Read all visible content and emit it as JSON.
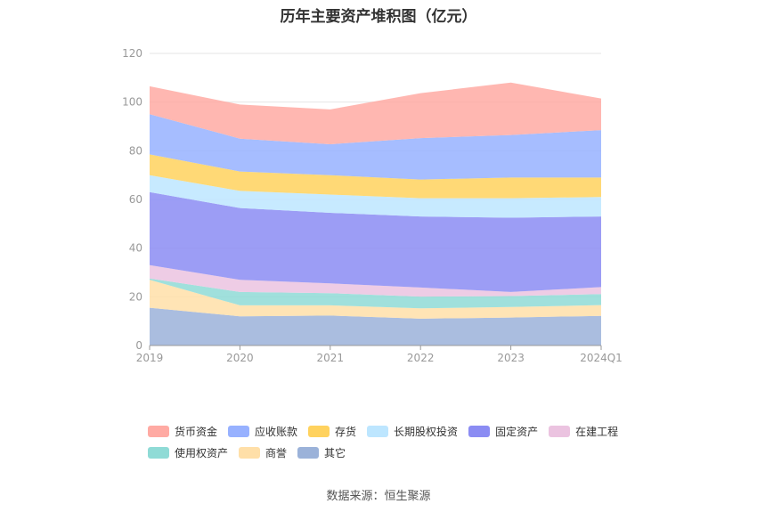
{
  "chart_data": {
    "type": "area",
    "title": "历年主要资产堆积图（亿元）",
    "source": "数据来源：恒生聚源",
    "categories": [
      "2019",
      "2020",
      "2021",
      "2022",
      "2023",
      "2024Q1"
    ],
    "ylim": [
      0,
      120
    ],
    "yticks": [
      "0",
      "20",
      "40",
      "60",
      "80",
      "100",
      "120"
    ],
    "stacked": true,
    "grid": true,
    "legend_position": "bottom",
    "series": [
      {
        "name": "其它",
        "color": "#9bb2d9",
        "values": [
          15.5,
          12.0,
          12.3,
          11.0,
          11.5,
          12.2
        ]
      },
      {
        "name": "商誉",
        "color": "#ffdfa8",
        "values": [
          11.5,
          4.5,
          4.2,
          4.3,
          4.3,
          4.4
        ]
      },
      {
        "name": "使用权资产",
        "color": "#8fdbd6",
        "values": [
          0.5,
          5.5,
          5.0,
          4.8,
          4.5,
          4.5
        ]
      },
      {
        "name": "在建工程",
        "color": "#ebc3e0",
        "values": [
          5.5,
          5.0,
          4.0,
          3.7,
          1.7,
          2.9
        ]
      },
      {
        "name": "固定资产",
        "color": "#8b8cf3",
        "values": [
          30.0,
          29.5,
          29.0,
          29.2,
          30.5,
          29.0
        ]
      },
      {
        "name": "长期股权投资",
        "color": "#bde6ff",
        "values": [
          7.0,
          7.0,
          7.5,
          7.5,
          8.0,
          8.0
        ]
      },
      {
        "name": "存货",
        "color": "#ffd25e",
        "values": [
          8.5,
          8.0,
          8.0,
          7.7,
          8.5,
          8.0
        ]
      },
      {
        "name": "应收账款",
        "color": "#97b1ff",
        "values": [
          16.5,
          13.5,
          12.7,
          17.0,
          17.5,
          19.5
        ]
      },
      {
        "name": "货币资金",
        "color": "#ffaaa3",
        "values": [
          11.5,
          14.0,
          14.3,
          18.5,
          21.5,
          13.0
        ]
      }
    ],
    "legend_rows": [
      [
        "货币资金",
        "应收账款",
        "存货",
        "长期股权投资",
        "固定资产",
        "在建工程"
      ],
      [
        "使用权资产",
        "商誉",
        "其它"
      ]
    ]
  }
}
